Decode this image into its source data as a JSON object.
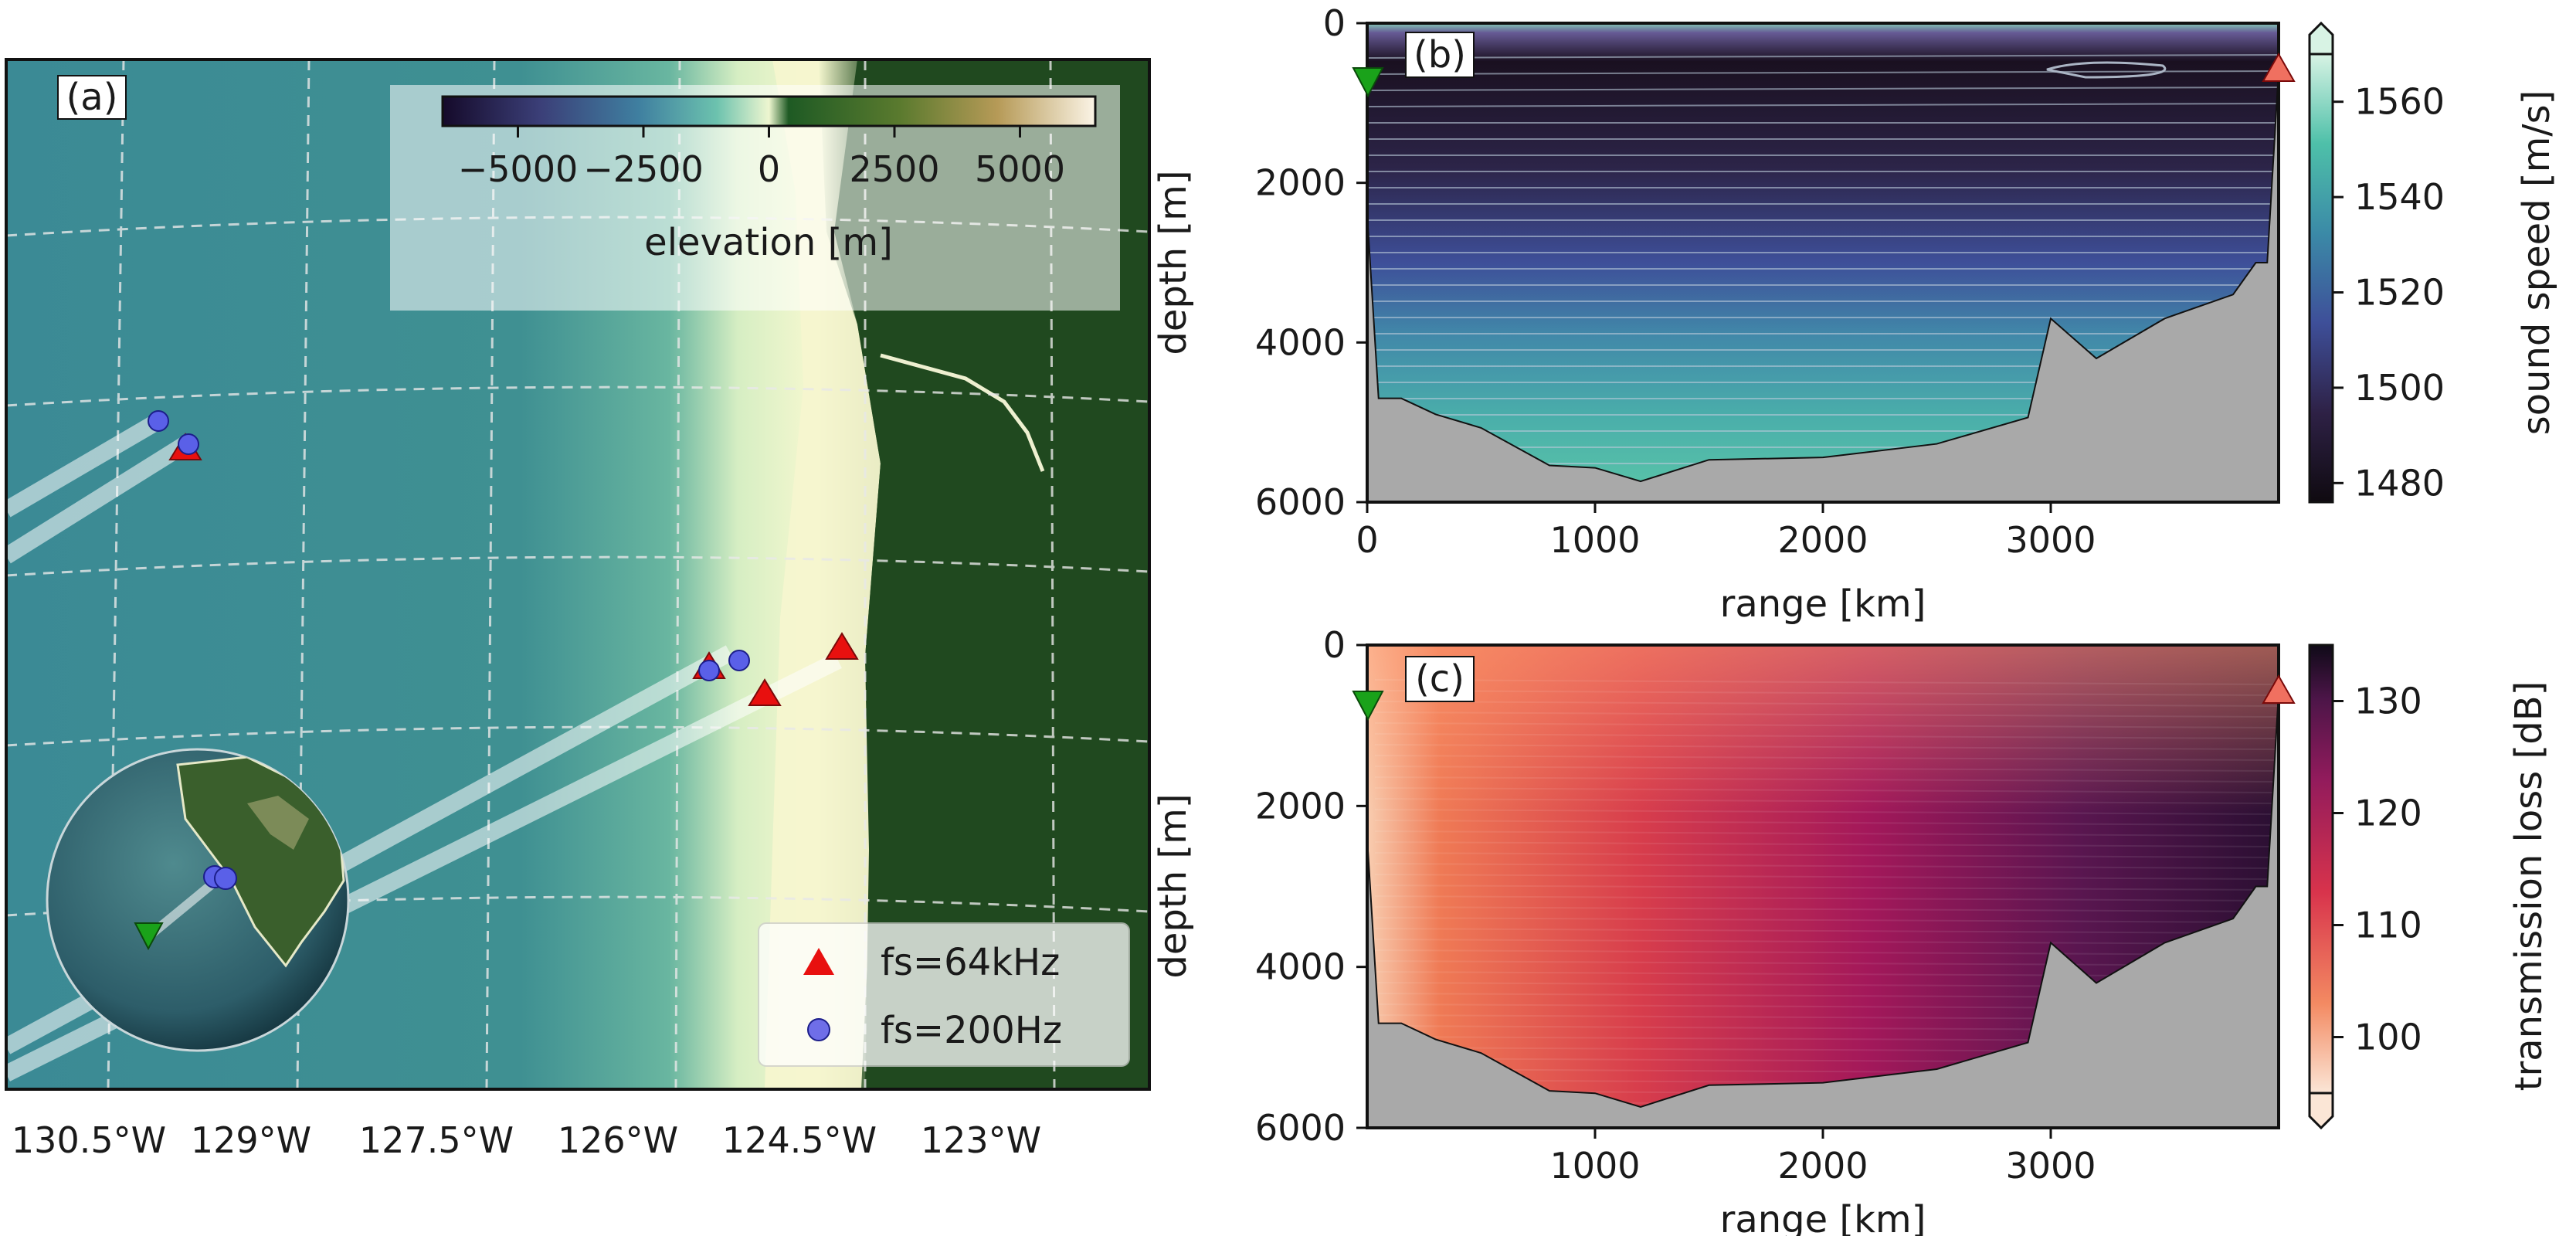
{
  "chart_data": [
    {
      "panel": "a",
      "type": "map",
      "panel_label": "(a)",
      "x_tick_labels": [
        "130.5°W",
        "129°W",
        "127.5°W",
        "126°W",
        "124.5°W",
        "123°W"
      ],
      "colorbar": {
        "label": "elevation [m]",
        "tick_labels": [
          "−5000",
          "−2500",
          "0",
          "2500",
          "5000"
        ],
        "range": [
          -6500,
          6500
        ]
      },
      "legend": {
        "position": "bottom-right",
        "entries": [
          {
            "label": "fs=64kHz",
            "marker": "triangle",
            "color": "#e8100f"
          },
          {
            "label": "fs=200Hz",
            "marker": "circle",
            "color": "#6f6ee8"
          }
        ]
      },
      "grid": true,
      "inset": "globe",
      "colors": {
        "ocean": "#3f8e8f",
        "land": "#1f4a1c",
        "coast": "#f4f4c4"
      }
    },
    {
      "panel": "b",
      "type": "heatmap",
      "panel_label": "(b)",
      "xlabel": "range [km]",
      "ylabel": "depth [m]",
      "xlim": [
        0,
        4000
      ],
      "ylim": [
        6000,
        0
      ],
      "x_ticks": [
        0,
        1000,
        2000,
        3000
      ],
      "y_ticks": [
        0,
        2000,
        4000,
        6000
      ],
      "colorbar": {
        "label": "sound speed [m/s]",
        "ticks": [
          1480,
          1500,
          1520,
          1540,
          1560
        ],
        "range": [
          1476,
          1570
        ]
      },
      "bathymetry": {
        "range_km": [
          0,
          50,
          150,
          300,
          500,
          800,
          1000,
          1200,
          1500,
          2000,
          2500,
          2900,
          3000,
          3200,
          3500,
          3800,
          3900,
          3950,
          4000
        ],
        "depth_m": [
          2400,
          4700,
          4700,
          4900,
          5100,
          5500,
          5600,
          5700,
          5500,
          5400,
          5300,
          4900,
          3700,
          4200,
          3700,
          3400,
          3000,
          3000,
          600
        ]
      }
    },
    {
      "panel": "c",
      "type": "heatmap",
      "panel_label": "(c)",
      "xlabel": "range [km]",
      "ylabel": "depth [m]",
      "xlim": [
        0,
        4000
      ],
      "ylim": [
        6000,
        0
      ],
      "x_ticks": [
        1000,
        2000,
        3000
      ],
      "y_ticks": [
        0,
        2000,
        4000,
        6000
      ],
      "colorbar": {
        "label": "transmission loss [dB]",
        "ticks": [
          100,
          110,
          120,
          130
        ],
        "range": [
          95,
          135
        ]
      }
    }
  ]
}
